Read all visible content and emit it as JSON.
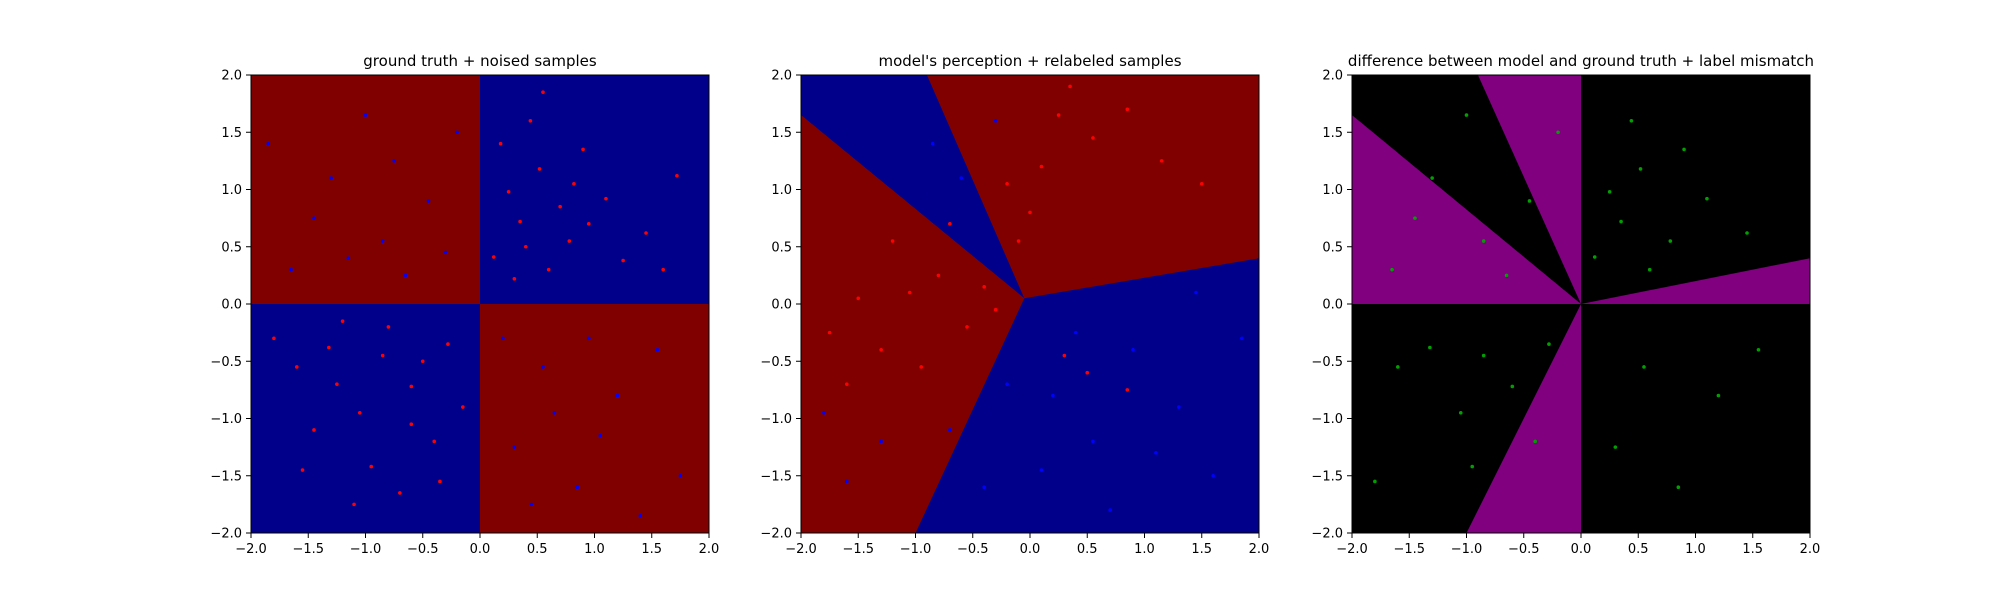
{
  "chart_data": [
    {
      "type": "heatmap",
      "title": "ground truth + noised samples",
      "xlim": [
        -2.0,
        2.0
      ],
      "ylim": [
        -2.0,
        2.0
      ],
      "xticks": [
        -2.0,
        -1.5,
        -1.0,
        -0.5,
        0.0,
        0.5,
        1.0,
        1.5,
        2.0
      ],
      "yticks": [
        -2.0,
        -1.5,
        -1.0,
        -0.5,
        0.0,
        0.5,
        1.0,
        1.5,
        2.0
      ],
      "xtick_labels": [
        "−2.0",
        "−1.5",
        "−1.0",
        "−0.5",
        "0.0",
        "0.5",
        "1.0",
        "1.5",
        "2.0"
      ],
      "ytick_labels": [
        "−2.0",
        "−1.5",
        "−1.0",
        "−0.5",
        "0.0",
        "0.5",
        "1.0",
        "1.5",
        "2.0"
      ],
      "grid": false,
      "regions": [
        {
          "x": [
            -2,
            0
          ],
          "y": [
            0,
            2
          ],
          "class": "red"
        },
        {
          "x": [
            0,
            2
          ],
          "y": [
            0,
            2
          ],
          "class": "blue"
        },
        {
          "x": [
            -2,
            0
          ],
          "y": [
            -2,
            0
          ],
          "class": "blue"
        },
        {
          "x": [
            0,
            2
          ],
          "y": [
            -2,
            0
          ],
          "class": "red"
        }
      ],
      "colors": {
        "red": "#800000",
        "blue": "#00008b",
        "point_red": "#ff0000",
        "point_blue": "#0000ff"
      },
      "points": {
        "red": [
          [
            0.35,
            0.72
          ],
          [
            0.52,
            1.18
          ],
          [
            0.12,
            0.41
          ],
          [
            0.78,
            0.55
          ],
          [
            1.1,
            0.92
          ],
          [
            0.44,
            1.6
          ],
          [
            0.25,
            0.98
          ],
          [
            0.9,
            1.35
          ],
          [
            1.45,
            0.62
          ],
          [
            0.6,
            0.3
          ],
          [
            0.18,
            1.4
          ],
          [
            1.72,
            1.12
          ],
          [
            0.7,
            0.85
          ],
          [
            0.4,
            0.5
          ],
          [
            1.25,
            0.38
          ],
          [
            0.95,
            0.7
          ],
          [
            0.3,
            0.22
          ],
          [
            0.55,
            1.85
          ],
          [
            1.6,
            0.3
          ],
          [
            0.82,
            1.05
          ],
          [
            -0.85,
            -0.45
          ],
          [
            -1.32,
            -0.38
          ],
          [
            -0.6,
            -0.72
          ],
          [
            -1.05,
            -0.95
          ],
          [
            -0.4,
            -1.2
          ],
          [
            -1.6,
            -0.55
          ],
          [
            -0.95,
            -1.42
          ],
          [
            -0.28,
            -0.35
          ],
          [
            -1.2,
            -0.15
          ],
          [
            -0.7,
            -1.65
          ],
          [
            -1.45,
            -1.1
          ],
          [
            -0.15,
            -0.9
          ],
          [
            -1.8,
            -0.3
          ],
          [
            -0.5,
            -0.5
          ],
          [
            -1.1,
            -1.75
          ],
          [
            -0.35,
            -1.55
          ],
          [
            -0.8,
            -0.2
          ],
          [
            -1.55,
            -1.45
          ],
          [
            -0.6,
            -1.05
          ],
          [
            -1.25,
            -0.7
          ]
        ],
        "blue": [
          [
            -0.85,
            0.55
          ],
          [
            -1.3,
            1.1
          ],
          [
            -0.45,
            0.9
          ],
          [
            -1.65,
            0.3
          ],
          [
            -0.2,
            1.5
          ],
          [
            -1.0,
            1.65
          ],
          [
            -0.65,
            0.25
          ],
          [
            -1.45,
            0.75
          ],
          [
            -0.3,
            0.45
          ],
          [
            -1.85,
            1.4
          ],
          [
            -0.75,
            1.25
          ],
          [
            -1.15,
            0.4
          ],
          [
            0.55,
            -0.55
          ],
          [
            1.2,
            -0.8
          ],
          [
            0.3,
            -1.25
          ],
          [
            1.55,
            -0.4
          ],
          [
            0.85,
            -1.6
          ],
          [
            0.2,
            -0.3
          ],
          [
            1.05,
            -1.15
          ],
          [
            1.75,
            -1.5
          ],
          [
            0.65,
            -0.95
          ],
          [
            1.4,
            -1.85
          ],
          [
            0.45,
            -1.75
          ],
          [
            0.95,
            -0.3
          ]
        ]
      }
    },
    {
      "type": "heatmap",
      "title": "model's perception + relabeled samples",
      "xlim": [
        -2.0,
        2.0
      ],
      "ylim": [
        -2.0,
        2.0
      ],
      "xticks": [
        -2.0,
        -1.5,
        -1.0,
        -0.5,
        0.0,
        0.5,
        1.0,
        1.5,
        2.0
      ],
      "yticks": [
        -2.0,
        -1.5,
        -1.0,
        -0.5,
        0.0,
        0.5,
        1.0,
        1.5,
        2.0
      ],
      "xtick_labels": [
        "−2.0",
        "−1.5",
        "−1.0",
        "−0.5",
        "0.0",
        "0.5",
        "1.0",
        "1.5",
        "2.0"
      ],
      "ytick_labels": [
        "−2.0",
        "−1.5",
        "−1.0",
        "−0.5",
        "0.0",
        "0.5",
        "1.0",
        "1.5",
        "2.0"
      ],
      "grid": false,
      "regions": [
        {
          "polygon": [
            [
              -0.05,
              0.05
            ],
            [
              -0.9,
              2.0
            ],
            [
              2.0,
              2.0
            ],
            [
              2.0,
              0.4
            ]
          ],
          "class": "red"
        },
        {
          "polygon": [
            [
              -0.05,
              0.05
            ],
            [
              -2.0,
              1.65
            ],
            [
              -2.0,
              2.0
            ],
            [
              -0.9,
              2.0
            ]
          ],
          "class": "blue"
        },
        {
          "polygon": [
            [
              -0.05,
              0.05
            ],
            [
              -2.0,
              1.65
            ],
            [
              -2.0,
              -2.0
            ],
            [
              -1.0,
              -2.0
            ]
          ],
          "class": "red"
        },
        {
          "polygon": [
            [
              -0.05,
              0.05
            ],
            [
              -1.0,
              -2.0
            ],
            [
              2.0,
              -2.0
            ],
            [
              2.0,
              0.4
            ]
          ],
          "class": "blue"
        }
      ],
      "colors": {
        "red": "#800000",
        "blue": "#00008b",
        "point_red": "#ff0000",
        "point_blue": "#0000ff"
      },
      "points": {
        "red": [
          [
            0.1,
            1.2
          ],
          [
            0.25,
            1.65
          ],
          [
            -0.2,
            1.05
          ],
          [
            0.55,
            1.45
          ],
          [
            0.0,
            0.8
          ],
          [
            1.15,
            1.25
          ],
          [
            0.85,
            1.7
          ],
          [
            -0.1,
            0.55
          ],
          [
            0.35,
            1.9
          ],
          [
            1.5,
            1.05
          ],
          [
            -0.8,
            0.25
          ],
          [
            -1.2,
            0.55
          ],
          [
            -0.55,
            -0.2
          ],
          [
            -1.5,
            0.05
          ],
          [
            -0.95,
            -0.55
          ],
          [
            -1.75,
            -0.25
          ],
          [
            -0.4,
            0.15
          ],
          [
            -1.3,
            -0.4
          ],
          [
            -0.7,
            0.7
          ],
          [
            -1.6,
            -0.7
          ],
          [
            -1.05,
            0.1
          ],
          [
            -0.3,
            -0.05
          ],
          [
            0.5,
            -0.6
          ],
          [
            0.85,
            -0.75
          ],
          [
            0.3,
            -0.45
          ]
        ],
        "blue": [
          [
            -0.6,
            1.1
          ],
          [
            -0.3,
            1.6
          ],
          [
            -0.85,
            1.4
          ],
          [
            -1.3,
            -1.2
          ],
          [
            -1.6,
            -1.55
          ],
          [
            -1.8,
            -0.95
          ],
          [
            0.2,
            -0.8
          ],
          [
            0.55,
            -1.2
          ],
          [
            0.9,
            -0.4
          ],
          [
            1.3,
            -0.9
          ],
          [
            -0.4,
            -1.6
          ],
          [
            0.1,
            -1.45
          ],
          [
            1.6,
            -1.5
          ],
          [
            0.7,
            -1.8
          ],
          [
            -0.7,
            -1.1
          ],
          [
            1.85,
            -0.3
          ],
          [
            0.4,
            -0.25
          ],
          [
            1.1,
            -1.3
          ],
          [
            -0.2,
            -0.7
          ],
          [
            1.45,
            0.1
          ]
        ]
      }
    },
    {
      "type": "heatmap",
      "title": "difference between model and ground truth + label mismatch",
      "xlim": [
        -2.0,
        2.0
      ],
      "ylim": [
        -2.0,
        2.0
      ],
      "xticks": [
        -2.0,
        -1.5,
        -1.0,
        -0.5,
        0.0,
        0.5,
        1.0,
        1.5,
        2.0
      ],
      "yticks": [
        -2.0,
        -1.5,
        -1.0,
        -0.5,
        0.0,
        0.5,
        1.0,
        1.5,
        2.0
      ],
      "xtick_labels": [
        "−2.0",
        "−1.5",
        "−1.0",
        "−0.5",
        "0.0",
        "0.5",
        "1.0",
        "1.5",
        "2.0"
      ],
      "ytick_labels": [
        "−2.0",
        "−1.5",
        "−1.0",
        "−0.5",
        "0.0",
        "0.5",
        "1.0",
        "1.5",
        "2.0"
      ],
      "grid": false,
      "regions": [
        {
          "polygon": [
            [
              0,
              0
            ],
            [
              -2.0,
              1.65
            ],
            [
              -2.0,
              0
            ]
          ],
          "class": "mismatch"
        },
        {
          "polygon": [
            [
              0,
              0
            ],
            [
              -0.9,
              2.0
            ],
            [
              0,
              2.0
            ]
          ],
          "class": "mismatch"
        },
        {
          "polygon": [
            [
              0,
              0
            ],
            [
              2.0,
              0.4
            ],
            [
              2.0,
              0
            ]
          ],
          "class": "mismatch"
        },
        {
          "polygon": [
            [
              0,
              0
            ],
            [
              -1.0,
              -2.0
            ],
            [
              0,
              -2.0
            ]
          ],
          "class": "mismatch"
        }
      ],
      "colors": {
        "background": "#000000",
        "mismatch": "#800080",
        "points": "#00a000"
      },
      "points": {
        "mismatch": [
          [
            0.35,
            0.72
          ],
          [
            0.52,
            1.18
          ],
          [
            0.12,
            0.41
          ],
          [
            0.78,
            0.55
          ],
          [
            1.1,
            0.92
          ],
          [
            0.44,
            1.6
          ],
          [
            0.25,
            0.98
          ],
          [
            0.9,
            1.35
          ],
          [
            1.45,
            0.62
          ],
          [
            0.6,
            0.3
          ],
          [
            -0.85,
            0.55
          ],
          [
            -1.3,
            1.1
          ],
          [
            -0.45,
            0.9
          ],
          [
            -1.65,
            0.3
          ],
          [
            -0.2,
            1.5
          ],
          [
            -1.0,
            1.65
          ],
          [
            -0.65,
            0.25
          ],
          [
            -1.45,
            0.75
          ],
          [
            0.55,
            -0.55
          ],
          [
            1.2,
            -0.8
          ],
          [
            0.3,
            -1.25
          ],
          [
            1.55,
            -0.4
          ],
          [
            0.85,
            -1.6
          ],
          [
            -0.85,
            -0.45
          ],
          [
            -1.32,
            -0.38
          ],
          [
            -0.6,
            -0.72
          ],
          [
            -1.05,
            -0.95
          ],
          [
            -0.4,
            -1.2
          ],
          [
            -1.6,
            -0.55
          ],
          [
            -0.95,
            -1.42
          ],
          [
            -0.28,
            -0.35
          ],
          [
            -1.8,
            -1.55
          ]
        ]
      }
    }
  ]
}
